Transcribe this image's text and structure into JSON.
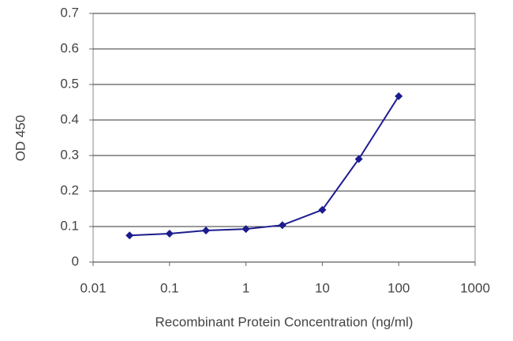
{
  "chart_data": {
    "type": "line",
    "x_label": "Recombinant Protein Concentration (ng/ml)",
    "y_label": "OD 450",
    "x": [
      0.03,
      0.1,
      0.3,
      1,
      3,
      10,
      30,
      100
    ],
    "series": [
      {
        "color": "#1c1c8e",
        "values": [
          0.075,
          0.08,
          0.089,
          0.093,
          0.104,
          0.147,
          0.29,
          0.467
        ]
      }
    ],
    "xscale": "log",
    "xlim": [
      0.01,
      1000
    ],
    "xticks": [
      0.01,
      0.1,
      1,
      10,
      100,
      1000
    ],
    "ylim": [
      0,
      0.7
    ],
    "yticks": [
      0,
      0.1,
      0.2,
      0.3,
      0.4,
      0.5,
      0.6,
      0.7
    ],
    "grid": true
  }
}
